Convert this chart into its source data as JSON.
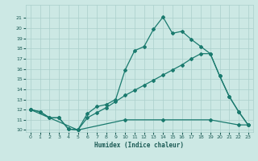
{
  "line1_x": [
    0,
    1,
    2,
    3,
    4,
    5,
    6,
    7,
    8,
    9,
    10,
    11,
    12,
    13,
    14,
    15,
    16,
    17,
    18,
    19,
    20,
    21,
    22,
    23
  ],
  "line1_y": [
    12.0,
    11.8,
    11.2,
    11.2,
    10.1,
    10.0,
    11.6,
    12.3,
    12.5,
    13.0,
    15.9,
    17.8,
    18.2,
    19.9,
    21.1,
    19.5,
    19.7,
    18.9,
    18.2,
    17.5,
    15.3,
    13.3,
    11.8,
    10.5
  ],
  "line2_x": [
    0,
    1,
    2,
    3,
    4,
    5,
    6,
    7,
    8,
    9,
    10,
    11,
    12,
    13,
    14,
    15,
    16,
    17,
    18,
    19,
    20,
    21,
    22,
    23
  ],
  "line2_y": [
    12.0,
    11.8,
    11.2,
    11.2,
    10.1,
    10.0,
    11.2,
    11.7,
    12.2,
    12.8,
    13.4,
    13.9,
    14.4,
    14.9,
    15.4,
    15.9,
    16.4,
    17.0,
    17.5,
    17.5,
    15.3,
    13.3,
    11.8,
    10.5
  ],
  "line3_x": [
    0,
    5,
    10,
    14,
    19,
    22,
    23
  ],
  "line3_y": [
    12.0,
    10.0,
    11.0,
    11.0,
    11.0,
    10.5,
    10.5
  ],
  "color": "#1a7a6e",
  "bg_color": "#cce8e4",
  "grid_color": "#aacfcb",
  "xlabel": "Humidex (Indice chaleur)",
  "ylim": [
    10,
    22
  ],
  "xlim": [
    -0.5,
    23.5
  ],
  "yticks": [
    10,
    11,
    12,
    13,
    14,
    15,
    16,
    17,
    18,
    19,
    20,
    21
  ],
  "xticks": [
    0,
    1,
    2,
    3,
    4,
    5,
    6,
    7,
    8,
    9,
    10,
    11,
    12,
    13,
    14,
    15,
    16,
    17,
    18,
    19,
    20,
    21,
    22,
    23
  ]
}
